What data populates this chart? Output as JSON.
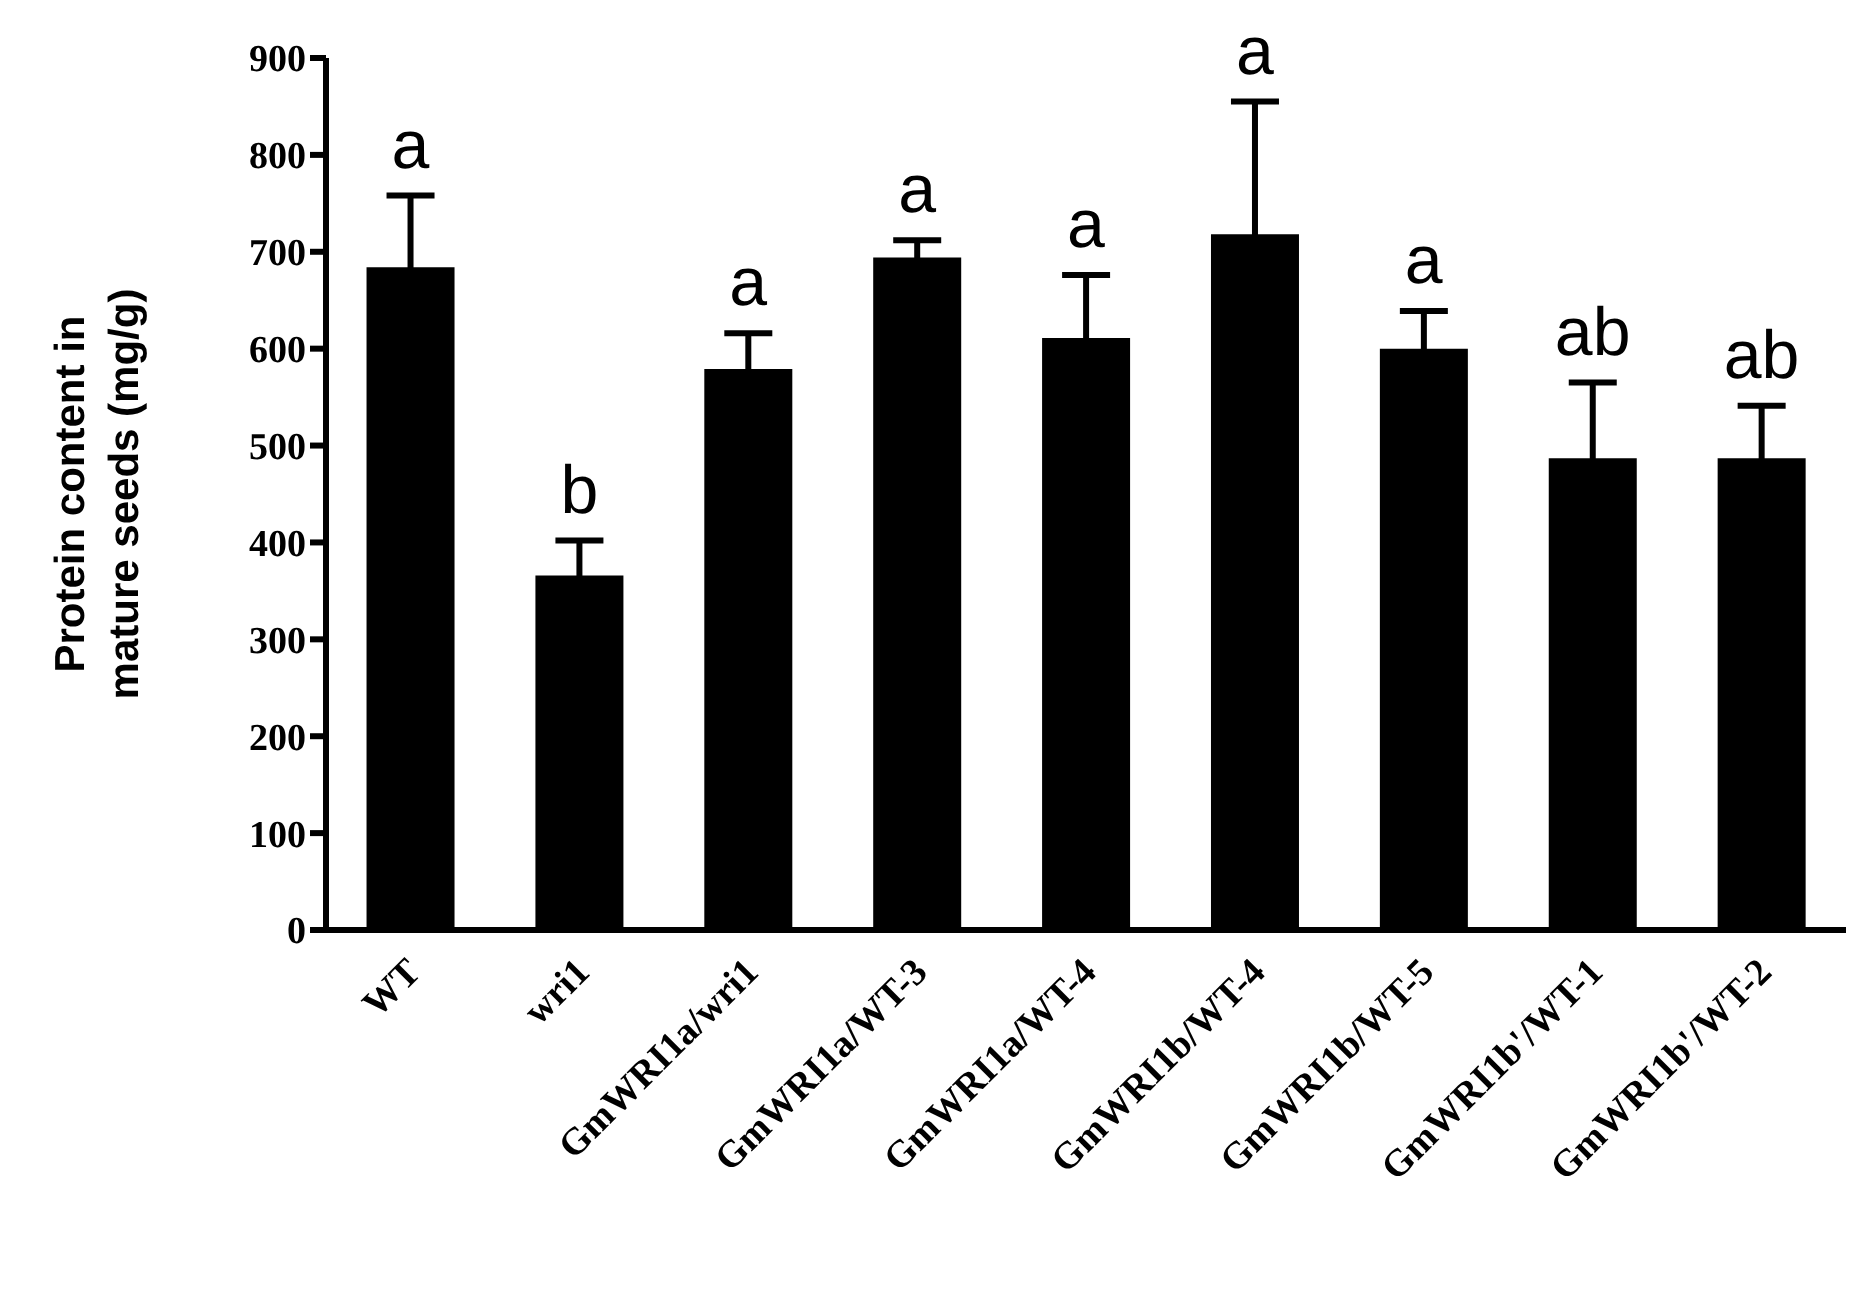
{
  "chart_data": {
    "type": "bar",
    "ylabel": "Protein content in\nmature seeds (mg/g)",
    "categories": [
      "WT",
      "wri1",
      "GmWRI1a/wri1",
      "GmWRI1a/WT-3",
      "GmWRI1a/WT-4",
      "GmWRI1b/WT-4",
      "GmWRI1b/WT-5",
      "GmWRI1b'/WT-1",
      "GmWRI1b'/WT-2"
    ],
    "values": [
      684,
      366,
      579,
      694,
      611,
      718,
      600,
      487,
      487
    ],
    "errors": [
      74,
      36,
      37,
      18,
      65,
      137,
      39,
      78,
      54
    ],
    "color": "#000000",
    "ylim": [
      0,
      900
    ],
    "yticks": [
      0,
      100,
      200,
      300,
      400,
      500,
      600,
      700,
      800,
      900
    ],
    "annotations": [
      "a",
      "b",
      "a",
      "a",
      "a",
      "a",
      "a",
      "ab",
      "ab"
    ]
  }
}
